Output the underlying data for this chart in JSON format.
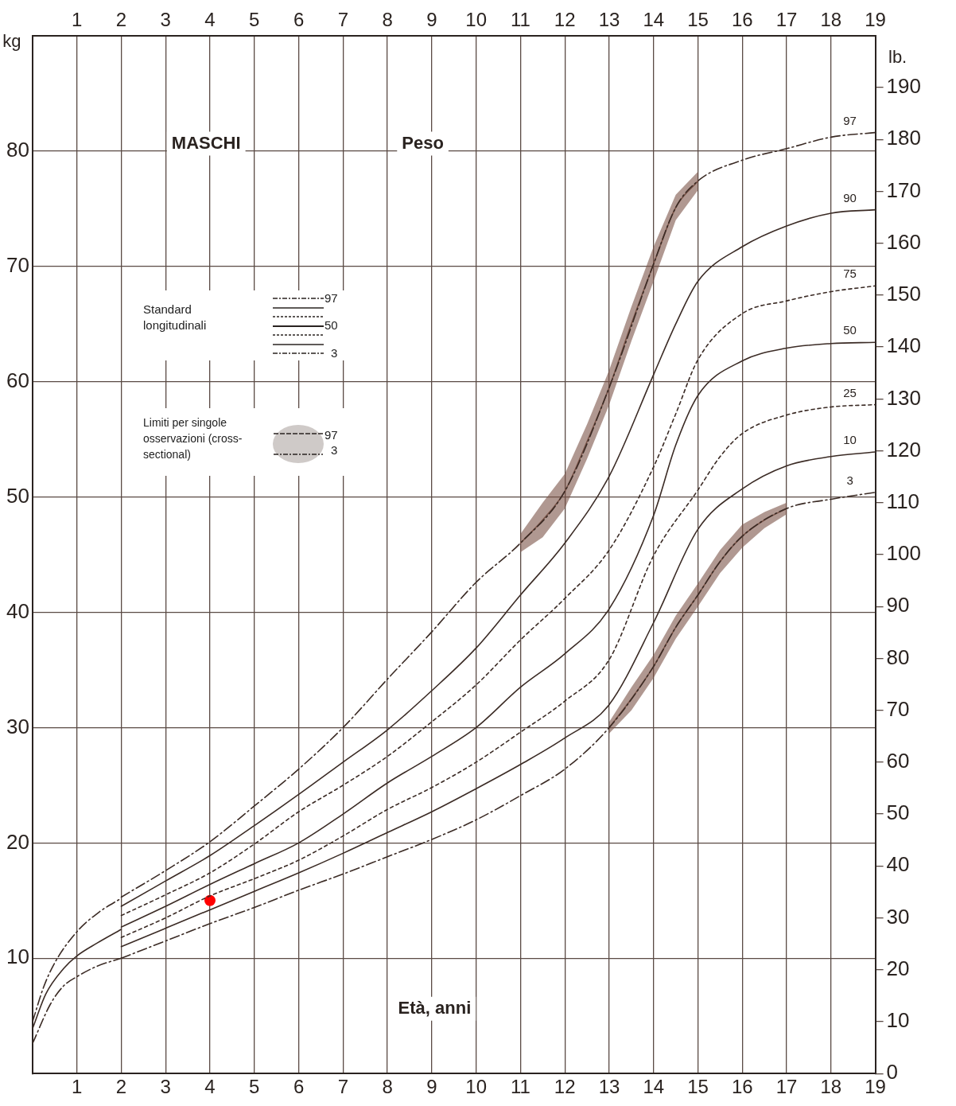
{
  "chart_data": {
    "type": "line",
    "title": "Peso",
    "subtitle": "MASCHI",
    "xlabel": "Età, anni",
    "ylabel": "kg",
    "y2label": "lb.",
    "xlim": [
      0,
      19
    ],
    "xticks": [
      1,
      2,
      3,
      4,
      5,
      6,
      7,
      8,
      9,
      10,
      11,
      12,
      13,
      14,
      15,
      16,
      17,
      18,
      19
    ],
    "x2lim": [
      0,
      19
    ],
    "x2ticks": [
      1,
      2,
      3,
      4,
      5,
      6,
      7,
      8,
      9,
      10,
      11,
      12,
      13,
      14,
      15,
      16,
      17,
      18,
      19
    ],
    "ylim": [
      0,
      90
    ],
    "yticks": [
      10,
      20,
      30,
      40,
      50,
      60,
      70,
      80
    ],
    "y2lim": [
      0,
      200
    ],
    "y2ticks": [
      0,
      10,
      20,
      30,
      40,
      50,
      60,
      70,
      80,
      90,
      100,
      110,
      120,
      130,
      140,
      150,
      160,
      170,
      180,
      190
    ],
    "grid": true,
    "marker": "none",
    "annotations": [
      "Standard longitudinali",
      "97",
      "50",
      "3",
      "Limiti per singole osservazioni (cross-sectional)",
      "97",
      "3"
    ],
    "series": [
      {
        "name": "97",
        "line_style": "dashed",
        "color": "#3b2b25",
        "x": [
          2,
          3,
          4,
          5,
          6,
          7,
          8,
          9,
          10,
          11,
          12,
          13,
          14,
          14.5,
          15,
          16,
          17,
          18,
          19
        ],
        "values": [
          15.3,
          17.6,
          20.1,
          23.2,
          26.4,
          30.0,
          34.2,
          38.3,
          42.6,
          46.0,
          50.5,
          59.5,
          70.2,
          75.1,
          77.4,
          79.2,
          80.2,
          81.2,
          81.6
        ]
      },
      {
        "name": "90",
        "line_style": "solid",
        "color": "#3b2b25",
        "x": [
          2,
          3,
          4,
          5,
          6,
          7,
          8,
          9,
          10,
          11,
          12,
          13,
          14,
          14.5,
          15,
          16,
          17,
          18,
          19
        ],
        "values": [
          14.5,
          16.7,
          18.9,
          21.5,
          24.2,
          27.0,
          29.8,
          33.2,
          36.9,
          41.5,
          46.0,
          51.8,
          60.6,
          65.0,
          68.7,
          71.7,
          73.5,
          74.6,
          74.9
        ]
      },
      {
        "name": "75",
        "line_style": "dotted",
        "color": "#3b2b25",
        "x": [
          2,
          3,
          4,
          5,
          6,
          7,
          8,
          9,
          10,
          11,
          12,
          13,
          14,
          14.5,
          15,
          16,
          17,
          18,
          19
        ],
        "values": [
          13.7,
          15.5,
          17.4,
          19.9,
          22.7,
          25.0,
          27.5,
          30.5,
          33.7,
          37.6,
          41.2,
          45.4,
          52.6,
          57.2,
          61.9,
          65.9,
          67.0,
          67.8,
          68.3
        ]
      },
      {
        "name": "50",
        "line_style": "solid",
        "color": "#3b2b25",
        "x": [
          2,
          3,
          4,
          5,
          6,
          7,
          8,
          9,
          10,
          11,
          12,
          13,
          14,
          14.5,
          15,
          16,
          17,
          18,
          19
        ],
        "values": [
          12.7,
          14.5,
          16.4,
          18.2,
          20.0,
          22.5,
          25.2,
          27.5,
          30.0,
          33.5,
          36.4,
          40.3,
          48.4,
          54.5,
          58.8,
          61.8,
          62.9,
          63.3,
          63.4
        ]
      },
      {
        "name": "25",
        "line_style": "dotted",
        "color": "#3b2b25",
        "x": [
          2,
          3,
          4,
          5,
          6,
          7,
          8,
          9,
          10,
          11,
          12,
          13,
          14,
          15,
          15.5,
          16,
          17,
          18,
          19
        ],
        "values": [
          11.8,
          13.5,
          15.4,
          16.9,
          18.5,
          20.6,
          22.9,
          24.8,
          27.0,
          29.6,
          32.3,
          35.9,
          44.9,
          50.6,
          53.5,
          55.5,
          57.1,
          57.8,
          58.0
        ]
      },
      {
        "name": "10",
        "line_style": "solid",
        "color": "#3b2b25",
        "x": [
          2,
          3,
          4,
          5,
          6,
          7,
          8,
          9,
          10,
          11,
          12,
          13,
          14,
          15,
          16,
          17,
          18,
          19
        ],
        "values": [
          11.0,
          12.6,
          14.2,
          15.8,
          17.4,
          19.1,
          20.9,
          22.7,
          24.7,
          26.8,
          29.1,
          32.0,
          39.1,
          47.2,
          50.7,
          52.7,
          53.5,
          53.9
        ]
      },
      {
        "name": "3",
        "line_style": "dashed",
        "color": "#3b2b25",
        "x": [
          2,
          3,
          4,
          5,
          6,
          7,
          8,
          9,
          10,
          11,
          12,
          13,
          14,
          14.5,
          15,
          15.5,
          16,
          17,
          18,
          19
        ],
        "values": [
          10.0,
          11.5,
          13.0,
          14.4,
          15.9,
          17.3,
          18.8,
          20.3,
          22.0,
          24.1,
          26.4,
          30.0,
          35.3,
          38.7,
          41.5,
          44.4,
          46.6,
          49.0,
          49.8,
          50.4
        ]
      },
      {
        "line_style": "dashed",
        "color": "#3b2b25",
        "x": [
          0,
          0.25,
          0.5,
          1,
          1.5,
          2
        ],
        "values": [
          4.5,
          7.5,
          9.6,
          12.3,
          14.0,
          15.2
        ]
      },
      {
        "line_style": "solid",
        "color": "#3b2b25",
        "x": [
          0,
          0.3,
          0.7,
          1,
          1.45,
          2
        ],
        "values": [
          3.9,
          6.9,
          9.1,
          10.2,
          11.3,
          12.5
        ]
      },
      {
        "line_style": "dashed",
        "color": "#3b2b25",
        "x": [
          0,
          0.4,
          0.7,
          1,
          1.45,
          2
        ],
        "values": [
          2.6,
          6.0,
          7.6,
          8.4,
          9.3,
          10.0
        ]
      },
      {
        "line_style": "solid",
        "color": "#7b5448",
        "x": [
          11,
          11.5,
          12,
          12.5,
          13,
          13.5,
          14,
          14.5,
          15
        ],
        "values": [
          46.0,
          48.0,
          50.5,
          54.8,
          59.5,
          65.0,
          70.2,
          75.1,
          77.4
        ],
        "lower": [
          45.2,
          46.5,
          49.0,
          53.3,
          58.0,
          63.5,
          68.7,
          74.0,
          76.6
        ],
        "upper": [
          46.8,
          49.5,
          52.0,
          56.3,
          61.0,
          66.5,
          71.7,
          76.2,
          78.2
        ]
      },
      {
        "line_style": "solid",
        "color": "#7b5448",
        "x": [
          13,
          13.5,
          14,
          14.5,
          15,
          15.5,
          16,
          16.5,
          17
        ],
        "values": [
          30.0,
          32.5,
          35.3,
          38.7,
          41.5,
          44.4,
          46.6,
          48.0,
          49.0
        ],
        "lower": [
          29.5,
          31.5,
          34.3,
          37.7,
          40.5,
          43.4,
          45.6,
          47.3,
          48.5
        ],
        "upper": [
          30.5,
          33.5,
          36.3,
          39.7,
          42.5,
          45.4,
          47.6,
          48.7,
          49.5
        ]
      },
      {
        "type": "scatter",
        "marker": "circle",
        "color": "#ff0000",
        "x": [
          4
        ],
        "values": [
          15
        ]
      }
    ]
  }
}
